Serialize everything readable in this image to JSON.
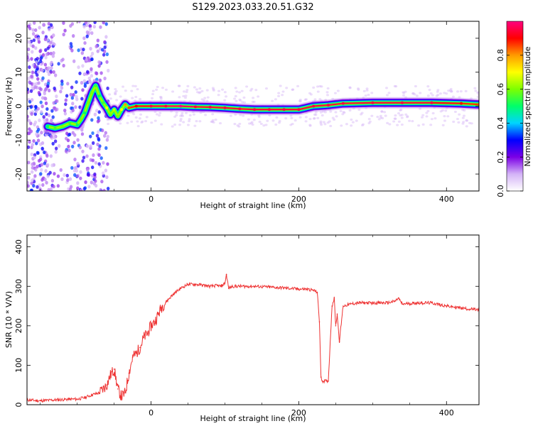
{
  "figure_title": "S129.2023.033.20.51.G32",
  "colorbar": {
    "label": "Normalized spectral amplitude",
    "ticks": [
      "0.0",
      "0.2",
      "0.4",
      "0.6",
      "0.8"
    ],
    "tick_values": [
      0.0,
      0.2,
      0.4,
      0.6,
      0.8
    ],
    "range": [
      0,
      1
    ],
    "colors": [
      "#ffffff",
      "#d4b3f7",
      "#7b00e6",
      "#0000ff",
      "#00d4ff",
      "#00ff6a",
      "#7dff00",
      "#ffff00",
      "#ff9a00",
      "#ff0000",
      "#ff0080"
    ]
  },
  "chart_data": [
    {
      "type": "heatmap",
      "title": "",
      "xlabel": "Height of straight line (km)",
      "ylabel": "Frequency (Hz)",
      "xlim": [
        -168,
        444
      ],
      "ylim": [
        -25,
        25
      ],
      "xticks": [
        0,
        200,
        400
      ],
      "yticks": [
        -20,
        -10,
        0,
        10,
        20
      ],
      "grid": false,
      "ridge": {
        "name": "",
        "x": [
          -140,
          -130,
          -120,
          -110,
          -100,
          -95,
          -90,
          -85,
          -80,
          -75,
          -70,
          -65,
          -60,
          -55,
          -50,
          -45,
          -40,
          -35,
          -30,
          -20,
          0,
          20,
          40,
          60,
          80,
          100,
          120,
          140,
          160,
          180,
          200,
          220,
          240,
          260,
          300,
          340,
          380,
          420,
          444
        ],
        "y": [
          -6,
          -6.5,
          -6,
          -5,
          -5.5,
          -4,
          -2,
          1,
          4,
          6,
          3,
          1,
          -0.5,
          -2.5,
          -1,
          -3,
          -1,
          0.5,
          -0.5,
          0,
          0,
          0,
          0,
          -0.2,
          -0.3,
          -0.5,
          -0.8,
          -1,
          -1,
          -1,
          -1,
          0,
          0.3,
          0.8,
          1,
          1,
          1,
          0.8,
          0.5
        ],
        "amplitude": [
          0.5,
          0.55,
          0.6,
          0.55,
          0.5,
          0.6,
          0.5,
          0.6,
          0.6,
          0.55,
          0.5,
          0.55,
          0.7,
          0.6,
          0.65,
          0.6,
          0.7,
          0.8,
          0.85,
          0.9,
          0.95,
          0.95,
          1.0,
          0.95,
          0.95,
          0.95,
          0.95,
          0.95,
          0.95,
          0.95,
          0.95,
          0.95,
          0.95,
          0.95,
          0.95,
          0.95,
          0.95,
          0.9,
          0.85
        ]
      }
    },
    {
      "type": "line",
      "title": "",
      "xlabel": "Height of straight line (km)",
      "ylabel": "SNR (10 * V/V)",
      "xlim": [
        -168,
        444
      ],
      "ylim": [
        0,
        430
      ],
      "xticks": [
        0,
        200,
        400
      ],
      "yticks": [
        0,
        100,
        200,
        300,
        400
      ],
      "grid": false,
      "series": [
        {
          "name": "",
          "color": "#ee3333",
          "x": [
            -168,
            -150,
            -130,
            -110,
            -100,
            -90,
            -80,
            -70,
            -60,
            -55,
            -50,
            -45,
            -40,
            -35,
            -30,
            -25,
            -20,
            -15,
            -10,
            -5,
            0,
            5,
            10,
            15,
            20,
            25,
            30,
            40,
            50,
            60,
            70,
            80,
            90,
            95,
            100,
            102,
            105,
            110,
            120,
            140,
            160,
            180,
            200,
            210,
            220,
            225,
            228,
            230,
            232,
            235,
            240,
            245,
            248,
            250,
            252,
            255,
            260,
            270,
            280,
            300,
            320,
            330,
            335,
            340,
            360,
            380,
            400,
            420,
            444
          ],
          "y": [
            12,
            10,
            12,
            14,
            14,
            18,
            25,
            30,
            50,
            75,
            90,
            40,
            20,
            30,
            80,
            120,
            130,
            145,
            170,
            180,
            200,
            210,
            230,
            250,
            260,
            270,
            280,
            295,
            305,
            305,
            303,
            300,
            302,
            300,
            308,
            330,
            295,
            300,
            300,
            300,
            298,
            296,
            293,
            293,
            290,
            285,
            210,
            70,
            60,
            60,
            60,
            250,
            270,
            200,
            230,
            160,
            250,
            255,
            258,
            258,
            258,
            262,
            270,
            255,
            258,
            258,
            250,
            245,
            240
          ]
        }
      ]
    }
  ]
}
